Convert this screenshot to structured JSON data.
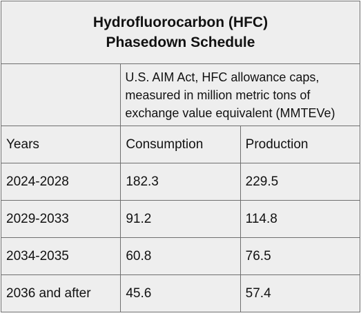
{
  "table": {
    "title_line1": "Hydrofluorocarbon (HFC)",
    "title_line2": "Phasedown Schedule",
    "note": "U.S. AIM Act, HFC allowance caps, measured in million metric tons of exchange value equivalent (MMTEVe)",
    "headers": [
      "Years",
      "Consumption",
      "Production"
    ],
    "rows": [
      [
        "2024-2028",
        "182.3",
        "229.5"
      ],
      [
        "2029-2033",
        "91.2",
        "114.8"
      ],
      [
        "2034-2035",
        "60.8",
        "76.5"
      ],
      [
        "2036 and after",
        "45.6",
        "57.4"
      ]
    ]
  }
}
